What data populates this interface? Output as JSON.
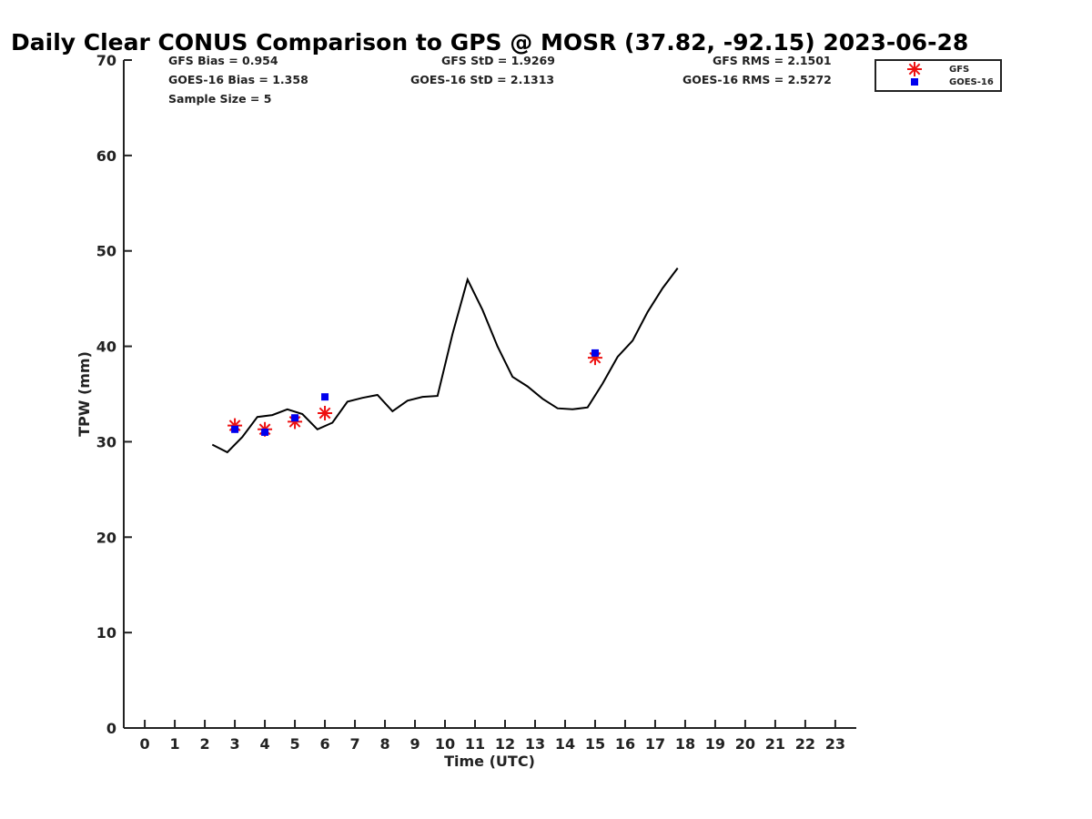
{
  "chart_data": {
    "type": "scatter",
    "title": "Daily Clear CONUS Comparison to GPS @ MOSR (37.82, -92.15) 2023-06-28",
    "xlabel": "Time (UTC)",
    "ylabel": "TPW (mm)",
    "xlim": [
      -0.7,
      23.7
    ],
    "ylim": [
      0,
      70
    ],
    "x_ticks": [
      "0",
      "1",
      "2",
      "3",
      "4",
      "5",
      "6",
      "7",
      "8",
      "9",
      "10",
      "11",
      "12",
      "13",
      "14",
      "15",
      "16",
      "17",
      "18",
      "19",
      "20",
      "21",
      "22",
      "23"
    ],
    "y_ticks": [
      "0",
      "10",
      "20",
      "30",
      "40",
      "50",
      "60",
      "70"
    ],
    "grid": false,
    "legend_position": "top-right",
    "stats": {
      "gfs_bias": "GFS Bias = 0.954",
      "goes_bias": "GOES-16 Bias = 1.358",
      "sample_size": "Sample Size = 5",
      "gfs_std": "GFS StD = 1.9269",
      "goes_std": "GOES-16 StD = 2.1313",
      "gfs_rms": "GFS RMS = 2.1501",
      "goes_rms": "GOES-16 RMS = 2.5272"
    },
    "series": [
      {
        "role": "gps",
        "style": "line",
        "color": "#000000",
        "x": [
          2.25,
          2.75,
          3.25,
          3.75,
          4.25,
          4.75,
          5.25,
          5.75,
          6.25,
          6.75,
          7.25,
          7.75,
          8.25,
          8.75,
          9.25,
          9.75,
          10.25,
          10.75,
          11.25,
          11.75,
          12.25,
          12.75,
          13.25,
          13.75,
          14.25,
          14.75,
          15.25,
          15.75,
          16.25,
          16.75,
          17.25,
          17.75
        ],
        "y": [
          29.7,
          28.9,
          30.5,
          32.6,
          32.8,
          33.4,
          32.9,
          31.3,
          32.0,
          34.2,
          34.6,
          34.9,
          33.2,
          34.3,
          34.7,
          34.8,
          41.3,
          47.0,
          43.8,
          40.0,
          36.8,
          35.8,
          34.5,
          33.5,
          33.4,
          33.6,
          36.1,
          38.9,
          40.6,
          43.6,
          46.1,
          48.2
        ]
      },
      {
        "name": "GFS",
        "style": "asterisk",
        "color": "#ee1111",
        "x": [
          3,
          4,
          5,
          6,
          15
        ],
        "y": [
          31.7,
          31.3,
          32.1,
          33.0,
          38.8
        ]
      },
      {
        "name": "GOES-16",
        "style": "square",
        "color": "#0000ee",
        "x": [
          3,
          4,
          5,
          6,
          15
        ],
        "y": [
          31.3,
          31.0,
          32.5,
          34.7,
          39.3
        ]
      }
    ]
  }
}
